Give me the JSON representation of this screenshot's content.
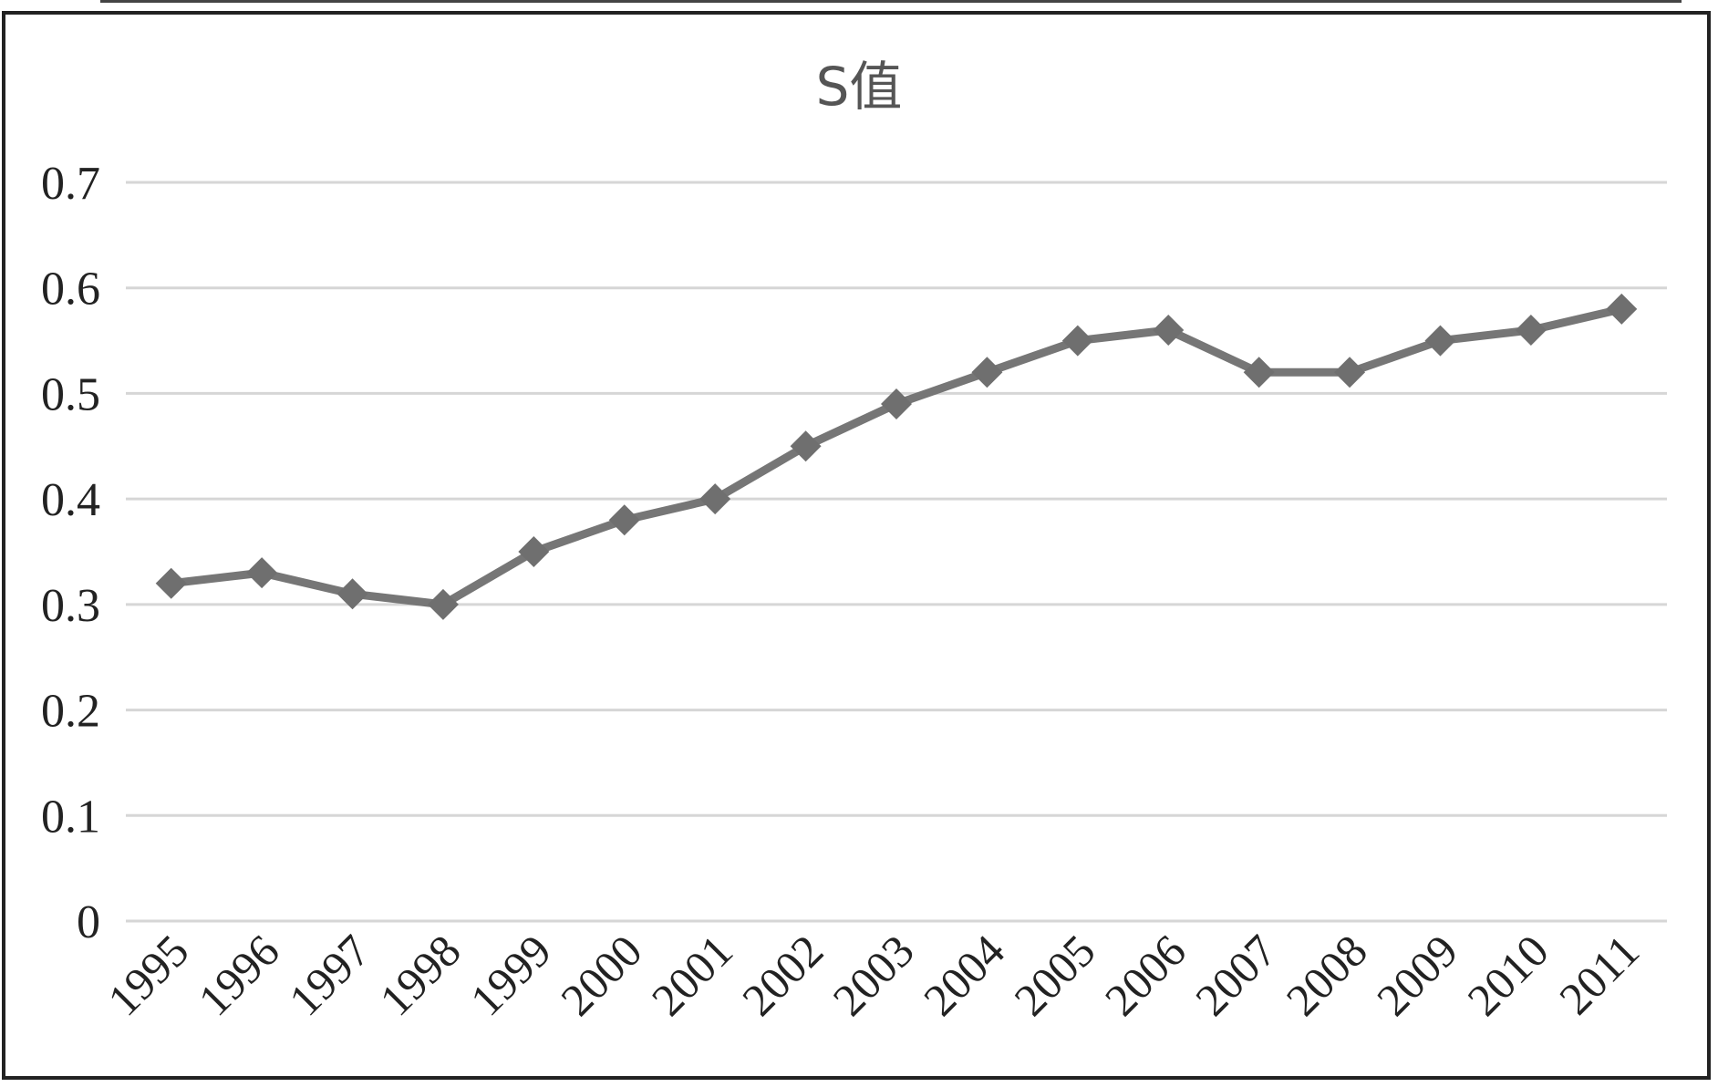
{
  "chart_data": {
    "type": "line",
    "title": "S值",
    "xlabel": "",
    "ylabel": "",
    "categories": [
      "1995",
      "1996",
      "1997",
      "1998",
      "1999",
      "2000",
      "2001",
      "2002",
      "2003",
      "2004",
      "2005",
      "2006",
      "2007",
      "2008",
      "2009",
      "2010",
      "2011"
    ],
    "series": [
      {
        "values": [
          0.32,
          0.33,
          0.31,
          0.3,
          0.35,
          0.38,
          0.4,
          0.45,
          0.49,
          0.52,
          0.55,
          0.56,
          0.52,
          0.52,
          0.55,
          0.56,
          0.58
        ],
        "color": "#767676",
        "marker": "diamond"
      }
    ],
    "ylim": [
      0,
      0.7
    ],
    "yticks": [
      "0",
      "0.1",
      "0.2",
      "0.3",
      "0.4",
      "0.5",
      "0.6",
      "0.7"
    ],
    "grid": true,
    "legend": "none"
  }
}
